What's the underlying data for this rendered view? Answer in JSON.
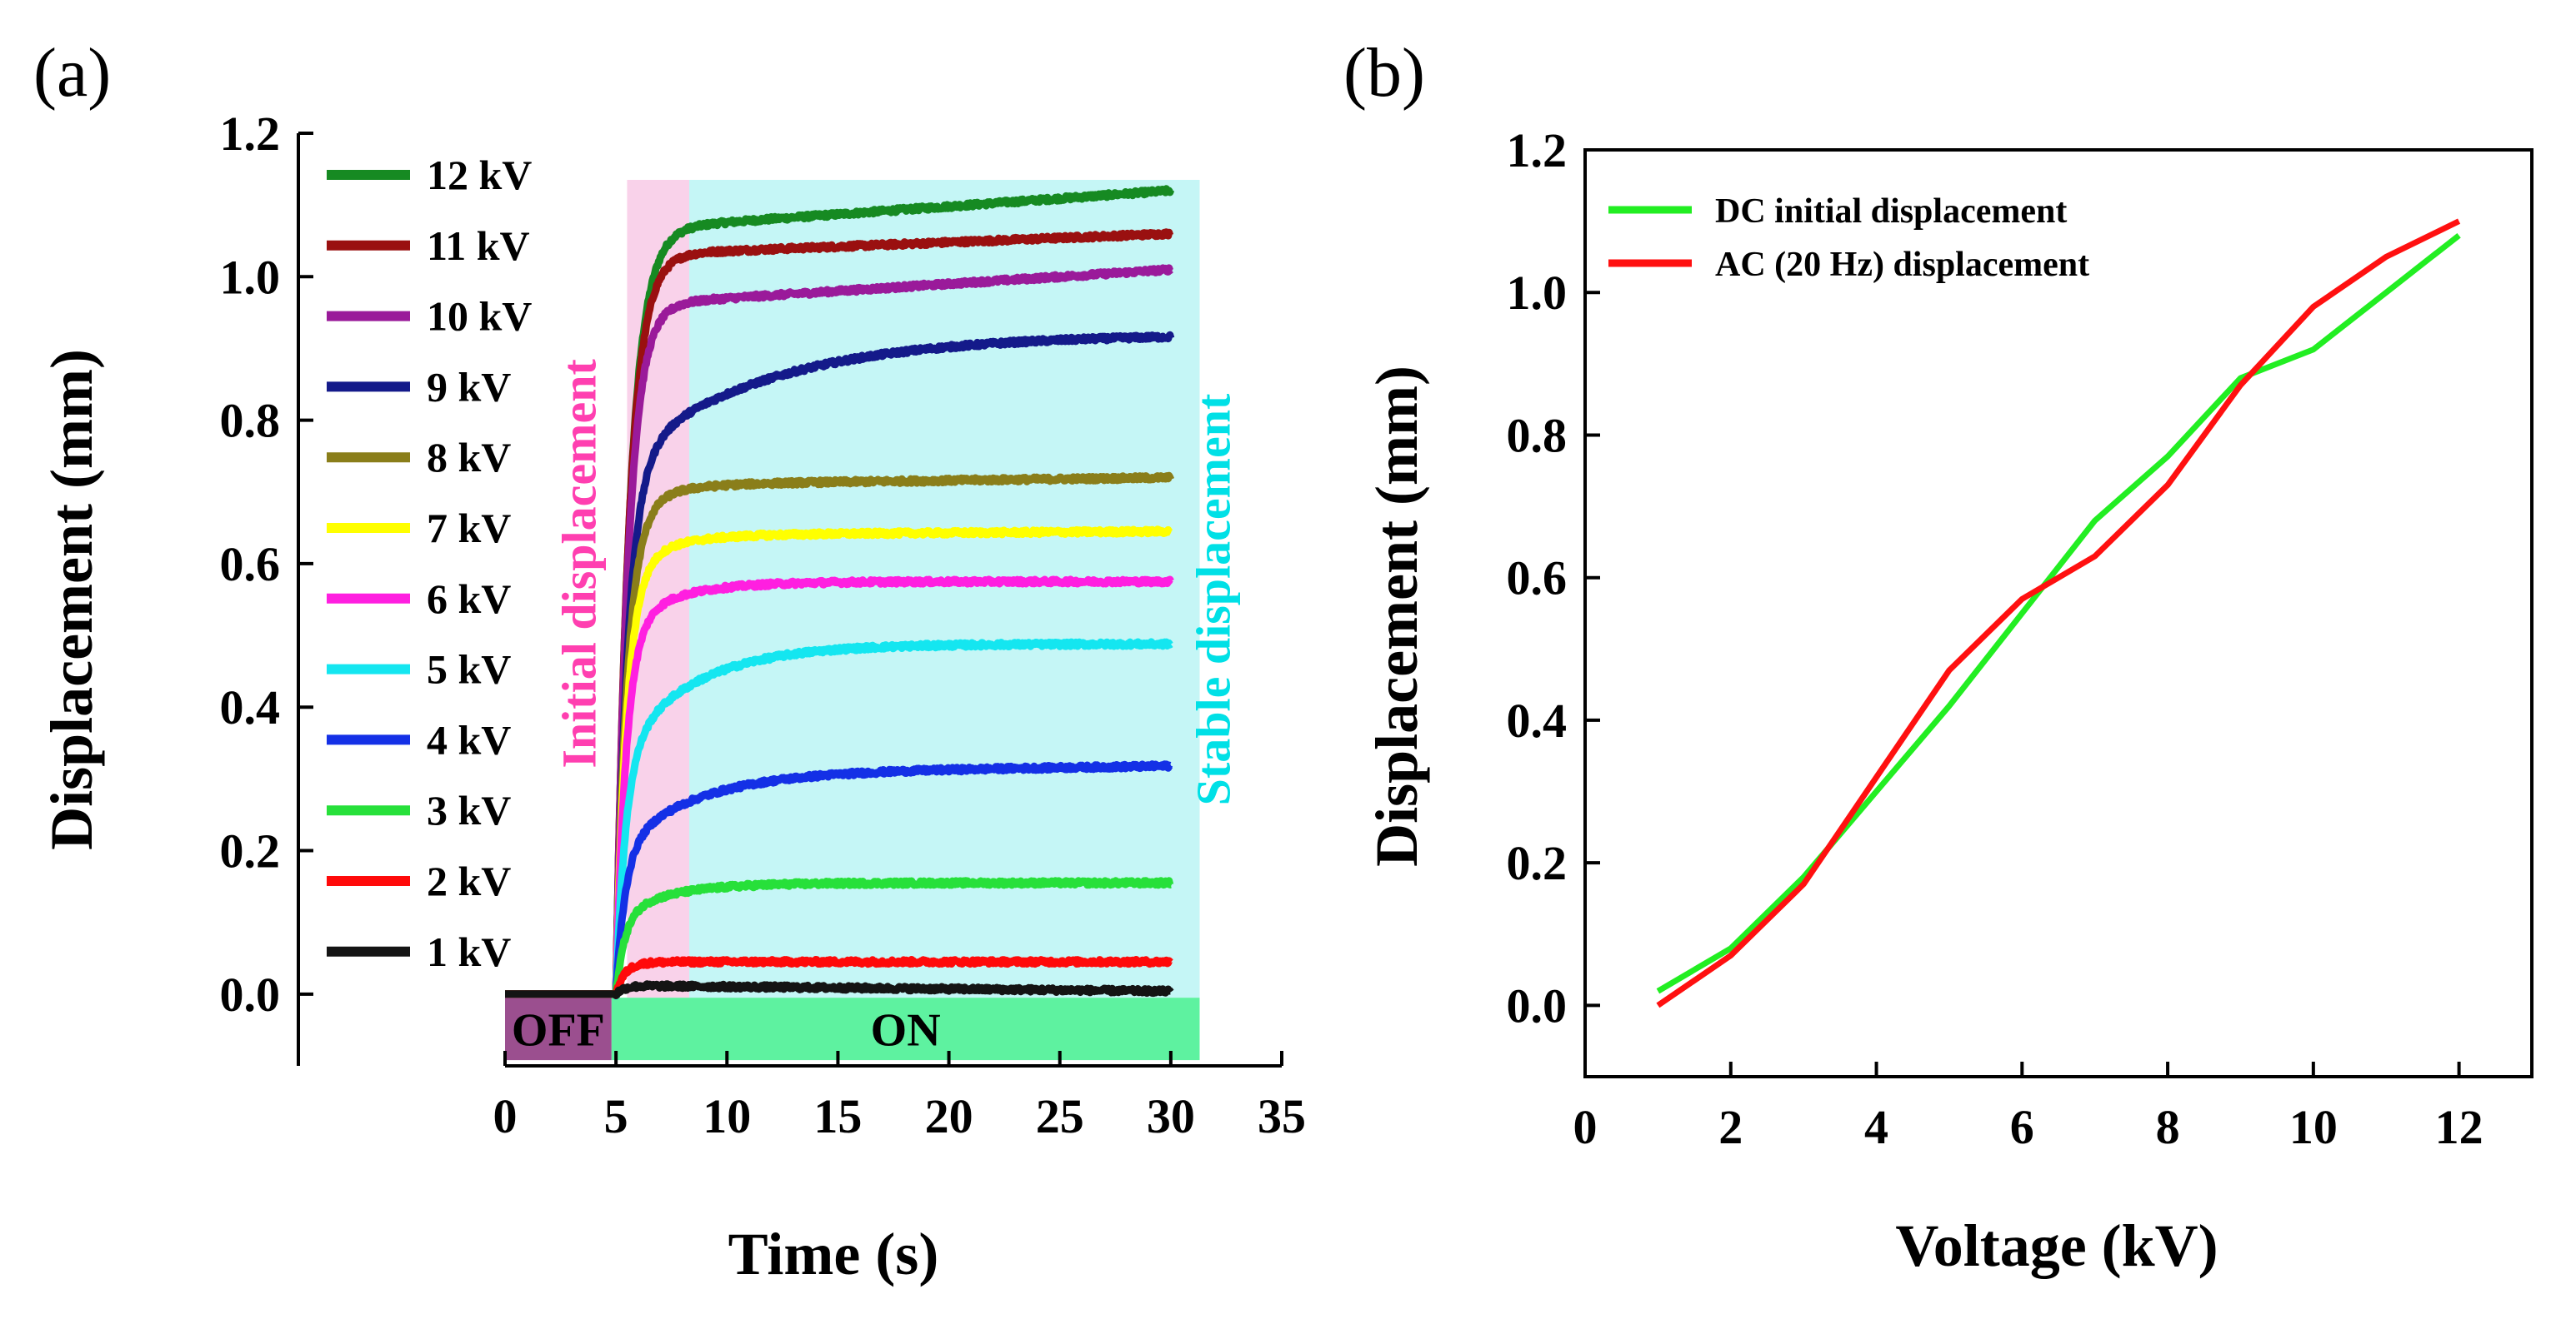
{
  "chart_data": [
    {
      "panel": "(a)",
      "type": "line",
      "xlabel": "Time (s)",
      "ylabel": "Displacement (mm)",
      "xlim": [
        0,
        35
      ],
      "ylim": [
        -0.1,
        1.2
      ],
      "xticks": [
        "0",
        "5",
        "10",
        "15",
        "20",
        "25",
        "30",
        "35"
      ],
      "yticks": [
        "0.0",
        "0.2",
        "0.4",
        "0.6",
        "0.8",
        "1.0",
        "1.2"
      ],
      "legend_position": "top-left",
      "regions": [
        {
          "name": "Initial displacement",
          "x_range": [
            5.5,
            8.3
          ],
          "color": "#f9d2ea",
          "text_color": "#ff3fb0"
        },
        {
          "name": "Stable displacement",
          "x_range": [
            8.3,
            31.3
          ],
          "color": "#c5f6f6",
          "text_color": "#00e0e6"
        }
      ],
      "state_bar": [
        {
          "label": "OFF",
          "x_range": [
            0,
            4.8
          ],
          "color": "#9b4f8f"
        },
        {
          "label": "ON",
          "x_range": [
            4.8,
            31.3
          ],
          "color": "#5ef2a0"
        }
      ],
      "series": [
        {
          "name": "12 kV",
          "color": "#168a22",
          "final": 1.12,
          "plateau": 1.07,
          "slow_tau": 1.2,
          "drift": 0.055
        },
        {
          "name": "11 kV",
          "color": "#9a1010",
          "final": 1.06,
          "plateau": 1.03,
          "slow_tau": 1.0,
          "drift": 0.03
        },
        {
          "name": "10 kV",
          "color": "#9a1a9a",
          "final": 1.01,
          "plateau": 0.96,
          "slow_tau": 1.3,
          "drift": 0.05
        },
        {
          "name": "9 kV",
          "color": "#141a8a",
          "final": 0.92,
          "plateau": 0.74,
          "slow_tau": 6.5,
          "drift": 0.0
        },
        {
          "name": "8 kV",
          "color": "#8a7e1a",
          "final": 0.72,
          "plateau": 0.67,
          "slow_tau": 1.8,
          "drift": 0.01
        },
        {
          "name": "7 kV",
          "color": "#ffff00",
          "final": 0.645,
          "plateau": 0.59,
          "slow_tau": 2.0,
          "drift": 0.005
        },
        {
          "name": "6 kV",
          "color": "#ff1fe0",
          "final": 0.575,
          "plateau": 0.51,
          "slow_tau": 2.4,
          "drift": 0.0
        },
        {
          "name": "5 kV",
          "color": "#14e6f0",
          "final": 0.488,
          "plateau": 0.33,
          "slow_tau": 3.3,
          "drift": 0.0
        },
        {
          "name": "4 kV",
          "color": "#1430e6",
          "final": 0.318,
          "plateau": 0.2,
          "slow_tau": 3.4,
          "drift": 0.01
        },
        {
          "name": "3 kV",
          "color": "#27e03a",
          "final": 0.155,
          "plateau": 0.11,
          "slow_tau": 2.4,
          "drift": 0.0
        },
        {
          "name": "2 kV",
          "color": "#ff0a0a",
          "final": 0.045,
          "plateau": 0.042,
          "slow_tau": 1.0,
          "drift": 0.0
        },
        {
          "name": "1 kV",
          "color": "#141414",
          "final": 0.004,
          "plateau": 0.012,
          "slow_tau": 1.0,
          "drift": -0.008
        }
      ],
      "time_range": [
        0,
        30
      ],
      "switch_on_time": 5.0
    },
    {
      "panel": "(b)",
      "type": "line",
      "xlabel": "Voltage (kV)",
      "ylabel": "Displacement (mm)",
      "xlim": [
        0,
        13
      ],
      "ylim": [
        -0.1,
        1.2
      ],
      "xticks": [
        "0",
        "2",
        "4",
        "6",
        "8",
        "10",
        "12"
      ],
      "yticks": [
        "0.0",
        "0.2",
        "0.4",
        "0.6",
        "0.8",
        "1.0",
        "1.2"
      ],
      "legend_position": "top-left",
      "series": [
        {
          "name": "DC initial displacement",
          "color": "#22ee22",
          "x": [
            1,
            2,
            3,
            4,
            5,
            6,
            7,
            8,
            9,
            10,
            11,
            12
          ],
          "values": [
            0.02,
            0.08,
            0.18,
            0.3,
            0.42,
            0.55,
            0.68,
            0.77,
            0.88,
            0.92,
            1.0,
            1.08
          ]
        },
        {
          "name": "AC (20 Hz) displacement",
          "color": "#ff1010",
          "x": [
            1,
            2,
            3,
            4,
            5,
            6,
            7,
            8,
            9,
            10,
            11,
            12
          ],
          "values": [
            0.0,
            0.07,
            0.17,
            0.32,
            0.47,
            0.57,
            0.63,
            0.73,
            0.87,
            0.98,
            1.05,
            1.1
          ]
        }
      ]
    }
  ]
}
